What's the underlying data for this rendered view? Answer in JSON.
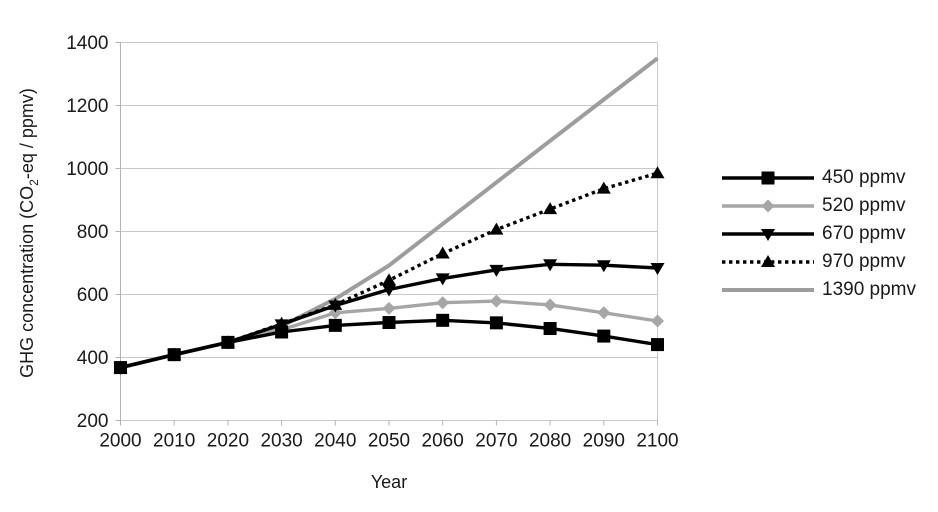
{
  "chart_data": {
    "type": "line",
    "title": "",
    "xlabel": "Year",
    "ylabel": "GHG concentration (CO2-eq / ppmv)",
    "ylabel_parts": {
      "prefix": "GHG concentration (CO",
      "subscript": "2",
      "suffix": "-eq / ppmv)"
    },
    "x": [
      2000,
      2010,
      2020,
      2030,
      2040,
      2050,
      2060,
      2070,
      2080,
      2090,
      2100
    ],
    "xlim": [
      2000,
      2100
    ],
    "ylim": [
      200,
      1400
    ],
    "y_ticks": [
      200,
      400,
      600,
      800,
      1000,
      1200,
      1400
    ],
    "grid": true,
    "legend_position": "right-outside",
    "colors": {
      "gridline": "#c9c9c9",
      "axis": "#b3b3b3",
      "text": "#1a1a1a",
      "background": "#ffffff"
    },
    "series": [
      {
        "name": "450 ppmv",
        "color": "#000000",
        "marker": "square",
        "line_style": "solid",
        "line_width": 3.4,
        "values": [
          368,
          409,
          448,
          481,
          502,
          511,
          518,
          510,
          492,
          468,
          441
        ]
      },
      {
        "name": "520 ppmv",
        "color": "#a6a6a6",
        "marker": "diamond",
        "line_style": "solid",
        "line_width": 3.4,
        "values": [
          368,
          409,
          448,
          488,
          542,
          556,
          574,
          579,
          567,
          542,
          516
        ]
      },
      {
        "name": "670 ppmv",
        "color": "#000000",
        "marker": "triangle-down",
        "line_style": "solid",
        "line_width": 3.4,
        "values": [
          368,
          409,
          448,
          505,
          565,
          616,
          651,
          678,
          696,
          693,
          684
        ]
      },
      {
        "name": "970 ppmv",
        "color": "#000000",
        "marker": "triangle-up",
        "line_style": "dotted",
        "line_width": 3.4,
        "values": [
          368,
          409,
          448,
          507,
          567,
          645,
          730,
          806,
          871,
          936,
          985
        ]
      },
      {
        "name": "1390 ppmv",
        "color": "#9d9d9d",
        "marker": "none",
        "line_style": "solid",
        "line_width": 4,
        "values": [
          368,
          409,
          448,
          500,
          586,
          692,
          824,
          956,
          1088,
          1219,
          1350
        ]
      }
    ]
  }
}
